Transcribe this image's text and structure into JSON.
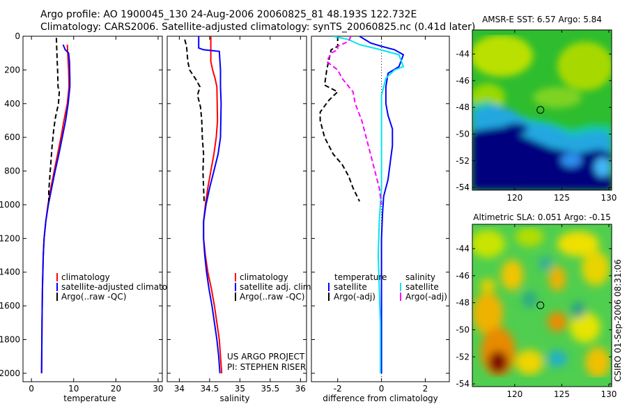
{
  "header": {
    "line1": "Argo profile: AO 1900045_130 24-Aug-2006 20060825_81 48.193S 122.732E",
    "line2": "Climatology: CARS2006. Satellite-adjusted climatology: synTS_20060825.nc (0.41d later)"
  },
  "project_note": {
    "line1": "US ARGO PROJECT",
    "line2": "PI: STEPHEN RISER"
  },
  "timestamp": "CSIRO 01-Sep-2006 08:31:06",
  "colors": {
    "climatology": "#ff0000",
    "satellite": "#0000ff",
    "argo": "#000000",
    "salinity_sat": "#00e5ee",
    "salinity_argo": "#ff00ff",
    "map_water_cold": "#00007f",
    "map_marker": "#000000"
  },
  "chart_data": [
    {
      "type": "line",
      "id": "temperature",
      "xlabel": "temperature",
      "xlim": [
        -2,
        31
      ],
      "ylim": [
        2050,
        0
      ],
      "xticks": [
        0,
        10,
        20,
        30
      ],
      "yticks": [
        0,
        200,
        400,
        600,
        800,
        1000,
        1200,
        1400,
        1600,
        1800,
        2000
      ],
      "legend": [
        "climatology",
        "satellite-adjusted climatolog",
        "Argo(..raw -QC)"
      ],
      "series": [
        {
          "name": "climatology",
          "color": "#ff0000",
          "dash": "",
          "points": [
            [
              8.5,
              50
            ],
            [
              8.6,
              100
            ],
            [
              8.8,
              200
            ],
            [
              8.9,
              300
            ],
            [
              8.5,
              400
            ],
            [
              7.7,
              500
            ],
            [
              7.0,
              600
            ],
            [
              6.2,
              700
            ],
            [
              5.4,
              800
            ],
            [
              4.6,
              900
            ],
            [
              3.9,
              1000
            ],
            [
              3.4,
              1100
            ],
            [
              3.0,
              1200
            ],
            [
              2.8,
              1300
            ],
            [
              2.7,
              1400
            ],
            [
              2.6,
              1500
            ],
            [
              2.5,
              1700
            ],
            [
              2.4,
              2000
            ]
          ]
        },
        {
          "name": "satellite-adjusted climatolog",
          "color": "#0000ff",
          "dash": "",
          "points": [
            [
              7.5,
              50
            ],
            [
              8.0,
              80
            ],
            [
              8.8,
              100
            ],
            [
              9.0,
              150
            ],
            [
              9.1,
              250
            ],
            [
              9.1,
              300
            ],
            [
              8.7,
              400
            ],
            [
              8.1,
              500
            ],
            [
              7.3,
              600
            ],
            [
              6.5,
              700
            ],
            [
              5.6,
              800
            ],
            [
              4.8,
              900
            ],
            [
              4.0,
              1000
            ],
            [
              3.4,
              1100
            ],
            [
              3.0,
              1200
            ],
            [
              2.8,
              1300
            ],
            [
              2.6,
              1500
            ],
            [
              2.5,
              1700
            ],
            [
              2.4,
              2000
            ]
          ]
        },
        {
          "name": "Argo(..raw -QC)",
          "color": "#000000",
          "dash": "7,4",
          "points": [
            [
              5.9,
              10
            ],
            [
              6.0,
              80
            ],
            [
              6.1,
              150
            ],
            [
              6.2,
              200
            ],
            [
              6.3,
              300
            ],
            [
              6.6,
              330
            ],
            [
              6.4,
              400
            ],
            [
              5.7,
              480
            ],
            [
              5.3,
              550
            ],
            [
              4.9,
              650
            ],
            [
              4.6,
              750
            ],
            [
              4.3,
              850
            ],
            [
              4.1,
              920
            ],
            [
              4.1,
              980
            ]
          ]
        }
      ]
    },
    {
      "type": "line",
      "id": "salinity",
      "xlabel": "salinity",
      "xlim": [
        33.8,
        36.1
      ],
      "ylim": [
        2050,
        0
      ],
      "xticks": [
        34,
        34.5,
        35,
        35.5,
        36
      ],
      "legend": [
        "climatology",
        "satellite adj. clim.",
        "Argo(..raw -QC)"
      ],
      "series": [
        {
          "name": "climatology",
          "color": "#ff0000",
          "dash": "",
          "points": [
            [
              34.52,
              0
            ],
            [
              34.52,
              60
            ],
            [
              34.52,
              150
            ],
            [
              34.55,
              200
            ],
            [
              34.59,
              250
            ],
            [
              34.62,
              300
            ],
            [
              34.63,
              500
            ],
            [
              34.61,
              600
            ],
            [
              34.57,
              700
            ],
            [
              34.52,
              800
            ],
            [
              34.47,
              900
            ],
            [
              34.43,
              1000
            ],
            [
              34.4,
              1100
            ],
            [
              34.4,
              1200
            ],
            [
              34.43,
              1300
            ],
            [
              34.47,
              1400
            ],
            [
              34.53,
              1500
            ],
            [
              34.58,
              1600
            ],
            [
              34.62,
              1700
            ],
            [
              34.66,
              1800
            ],
            [
              34.68,
              1900
            ],
            [
              34.7,
              2000
            ]
          ]
        },
        {
          "name": "satellite adj. clim.",
          "color": "#0000ff",
          "dash": "",
          "points": [
            [
              34.32,
              0
            ],
            [
              34.32,
              70
            ],
            [
              34.4,
              80
            ],
            [
              34.66,
              90
            ],
            [
              34.68,
              200
            ],
            [
              34.68,
              300
            ],
            [
              34.69,
              400
            ],
            [
              34.68,
              600
            ],
            [
              34.64,
              700
            ],
            [
              34.57,
              800
            ],
            [
              34.5,
              900
            ],
            [
              34.44,
              1000
            ],
            [
              34.4,
              1100
            ],
            [
              34.4,
              1200
            ],
            [
              34.42,
              1300
            ],
            [
              34.45,
              1400
            ],
            [
              34.49,
              1500
            ],
            [
              34.54,
              1600
            ],
            [
              34.58,
              1700
            ],
            [
              34.62,
              1800
            ],
            [
              34.65,
              1900
            ],
            [
              34.67,
              2000
            ]
          ]
        },
        {
          "name": "Argo(..raw -QC)",
          "color": "#000000",
          "dash": "7,4",
          "points": [
            [
              34.09,
              20
            ],
            [
              34.12,
              60
            ],
            [
              34.14,
              150
            ],
            [
              34.17,
              200
            ],
            [
              34.28,
              260
            ],
            [
              34.34,
              300
            ],
            [
              34.3,
              350
            ],
            [
              34.35,
              420
            ],
            [
              34.37,
              500
            ],
            [
              34.38,
              600
            ],
            [
              34.4,
              700
            ],
            [
              34.39,
              800
            ],
            [
              34.4,
              900
            ],
            [
              34.41,
              980
            ]
          ]
        }
      ]
    },
    {
      "type": "line",
      "id": "difference",
      "xlabel": "difference from climatology",
      "xlim": [
        -3.2,
        3.1
      ],
      "ylim": [
        2050,
        0
      ],
      "xticks": [
        -2,
        0,
        2
      ],
      "legend_temperature_header": "temperature",
      "legend_salinity_header": "salinity",
      "legend": [
        "satellite",
        "Argo(-adj)",
        "satellite",
        "Argo(-adj)"
      ],
      "series": [
        {
          "name": "temperature satellite",
          "color": "#0000ff",
          "dash": "",
          "points": [
            [
              -1.0,
              0
            ],
            [
              -0.5,
              40
            ],
            [
              0.0,
              60
            ],
            [
              0.6,
              80
            ],
            [
              1.0,
              110
            ],
            [
              0.8,
              180
            ],
            [
              0.3,
              220
            ],
            [
              0.2,
              300
            ],
            [
              0.2,
              400
            ],
            [
              0.3,
              470
            ],
            [
              0.5,
              550
            ],
            [
              0.5,
              650
            ],
            [
              0.4,
              750
            ],
            [
              0.3,
              850
            ],
            [
              0.1,
              950
            ],
            [
              0.05,
              1050
            ],
            [
              0.0,
              1200
            ],
            [
              0.0,
              2000
            ]
          ]
        },
        {
          "name": "temperature Argo(-adj)",
          "color": "#000000",
          "dash": "7,4",
          "points": [
            [
              -2.0,
              0
            ],
            [
              -2.0,
              60
            ],
            [
              -2.3,
              80
            ],
            [
              -2.5,
              200
            ],
            [
              -2.6,
              290
            ],
            [
              -2.0,
              330
            ],
            [
              -2.4,
              380
            ],
            [
              -2.8,
              450
            ],
            [
              -2.8,
              500
            ],
            [
              -2.6,
              600
            ],
            [
              -2.2,
              700
            ],
            [
              -1.8,
              760
            ],
            [
              -1.5,
              830
            ],
            [
              -1.3,
              900
            ],
            [
              -1.0,
              980
            ]
          ]
        },
        {
          "name": "salinity satellite",
          "color": "#00e5ee",
          "dash": "",
          "points": [
            [
              -2.2,
              0
            ],
            [
              -1.5,
              20
            ],
            [
              -1.0,
              50
            ],
            [
              -0.2,
              75
            ],
            [
              0.8,
              110
            ],
            [
              1.0,
              180
            ],
            [
              0.6,
              200
            ],
            [
              0.2,
              250
            ],
            [
              0.0,
              350
            ],
            [
              0.0,
              500
            ],
            [
              0.0,
              700
            ],
            [
              0.0,
              900
            ],
            [
              -0.1,
              1100
            ],
            [
              -0.15,
              1300
            ],
            [
              -0.1,
              1500
            ],
            [
              -0.05,
              1700
            ],
            [
              -0.05,
              2000
            ]
          ]
        },
        {
          "name": "salinity Argo(-adj)",
          "color": "#ff00ff",
          "dash": "7,4",
          "points": [
            [
              -1.4,
              0
            ],
            [
              -1.5,
              30
            ],
            [
              -2.0,
              60
            ],
            [
              -2.0,
              80
            ],
            [
              -2.3,
              100
            ],
            [
              -2.5,
              150
            ],
            [
              -2.0,
              200
            ],
            [
              -1.8,
              250
            ],
            [
              -1.3,
              330
            ],
            [
              -1.2,
              400
            ],
            [
              -0.9,
              500
            ],
            [
              -0.7,
              600
            ],
            [
              -0.5,
              700
            ],
            [
              -0.3,
              800
            ],
            [
              -0.1,
              900
            ],
            [
              0.0,
              1000
            ]
          ]
        }
      ]
    },
    {
      "type": "heatmap",
      "id": "amsr-sst",
      "title": "AMSR-E SST: 6.57  Argo: 5.84",
      "xticks": [
        120,
        125,
        130
      ],
      "yticks": [
        -44,
        -46,
        -48,
        -50,
        -52,
        -54
      ],
      "xlim": [
        115.5,
        130.3
      ],
      "ylim": [
        -54.2,
        -42.2
      ],
      "marker": [
        122.73,
        -48.19
      ]
    },
    {
      "type": "heatmap",
      "id": "altimetric-sla",
      "title": "Altimetric SLA: 0.051  Argo: -0.15",
      "xticks": [
        120,
        125,
        130
      ],
      "yticks": [
        -44,
        -46,
        -48,
        -50,
        -52,
        -54
      ],
      "xlim": [
        115.5,
        130.3
      ],
      "ylim": [
        -54.2,
        -42.2
      ],
      "marker": [
        122.73,
        -48.19
      ]
    }
  ]
}
